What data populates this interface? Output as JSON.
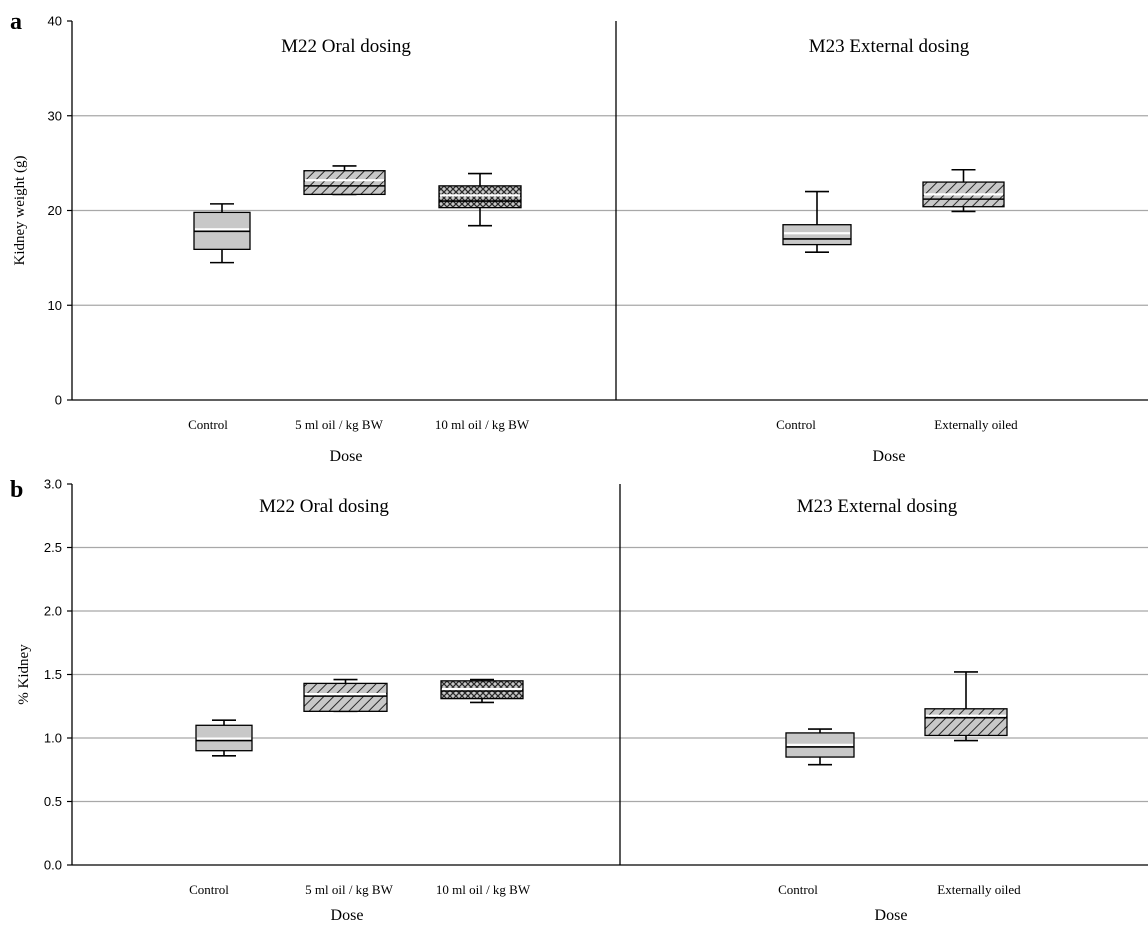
{
  "chart_data": [
    {
      "type": "box",
      "panel_label": "a",
      "ylabel": "Kidney weight (g)",
      "xlabel": "Dose",
      "ylim": [
        0,
        40
      ],
      "yticks": [
        "0",
        "10",
        "20",
        "30",
        "40"
      ],
      "grid": true,
      "sections": [
        {
          "title": "M22 Oral dosing",
          "boxes": [
            {
              "category": "Control",
              "whisker_low": 14.5,
              "q1": 15.9,
              "median": 17.8,
              "q3": 19.8,
              "whisker_high": 20.7,
              "mean": null,
              "pattern": "solid-gray"
            },
            {
              "category": "5 ml oil / kg BW",
              "whisker_low": 21.7,
              "q1": 21.7,
              "median": 22.6,
              "q3": 24.2,
              "whisker_high": 24.7,
              "mean": 23.2,
              "pattern": "hatch"
            },
            {
              "category": "10 ml oil / kg BW",
              "whisker_low": 18.4,
              "q1": 20.3,
              "median": 21.0,
              "q3": 22.6,
              "whisker_high": 23.9,
              "mean": 21.6,
              "pattern": "crosshatch"
            }
          ]
        },
        {
          "title": "M23 External dosing",
          "boxes": [
            {
              "category": "Control",
              "whisker_low": 15.6,
              "q1": 16.4,
              "median": 17.0,
              "q3": 18.5,
              "whisker_high": 22.0,
              "mean": 17.6,
              "pattern": "solid-gray"
            },
            {
              "category": "Externally oiled",
              "whisker_low": 19.9,
              "q1": 20.4,
              "median": 21.2,
              "q3": 23.0,
              "whisker_high": 24.3,
              "mean": 21.7,
              "pattern": "hatch"
            }
          ]
        }
      ]
    },
    {
      "type": "box",
      "panel_label": "b",
      "ylabel": "% Kidney",
      "xlabel": "Dose",
      "ylim": [
        0,
        3
      ],
      "yticks": [
        "0.0",
        "0.5",
        "1.0",
        "1.5",
        "2.0",
        "2.5",
        "3.0"
      ],
      "grid": true,
      "sections": [
        {
          "title": "M22 Oral dosing",
          "boxes": [
            {
              "category": "Control",
              "whisker_low": 0.86,
              "q1": 0.9,
              "median": 0.98,
              "q3": 1.1,
              "whisker_high": 1.14,
              "mean": null,
              "pattern": "solid-gray"
            },
            {
              "category": "5 ml oil / kg BW",
              "whisker_low": 1.21,
              "q1": 1.21,
              "median": 1.33,
              "q3": 1.43,
              "whisker_high": 1.46,
              "mean": null,
              "pattern": "hatch"
            },
            {
              "category": "10 ml oil / kg BW",
              "whisker_low": 1.28,
              "q1": 1.31,
              "median": 1.37,
              "q3": 1.45,
              "whisker_high": 1.46,
              "mean": null,
              "pattern": "crosshatch"
            }
          ]
        },
        {
          "title": "M23 External dosing",
          "boxes": [
            {
              "category": "Control",
              "whisker_low": 0.79,
              "q1": 0.85,
              "median": 0.93,
              "q3": 1.04,
              "whisker_high": 1.07,
              "mean": null,
              "pattern": "solid-gray"
            },
            {
              "category": "Externally oiled",
              "whisker_low": 0.98,
              "q1": 1.02,
              "median": 1.16,
              "q3": 1.23,
              "whisker_high": 1.52,
              "mean": null,
              "pattern": "hatch"
            }
          ]
        }
      ]
    }
  ]
}
